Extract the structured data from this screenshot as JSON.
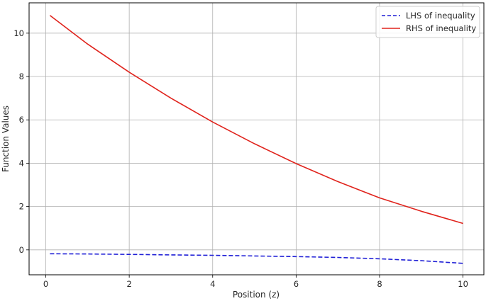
{
  "chart_data": {
    "type": "line",
    "title": "",
    "xlabel": "Position (z)",
    "ylabel": "Function Values",
    "xlim": [
      -0.4,
      10.5
    ],
    "ylim": [
      -1.15,
      11.4
    ],
    "xticks": [
      0,
      2,
      4,
      6,
      8,
      10
    ],
    "yticks": [
      0,
      2,
      4,
      6,
      8,
      10
    ],
    "grid": true,
    "legend_position": "top-right",
    "series": [
      {
        "name": "LHS of inequality",
        "color": "#1f1fd6",
        "style": "dashed",
        "x": [
          0.1,
          1,
          2,
          3,
          4,
          5,
          6,
          7,
          8,
          9,
          10
        ],
        "y": [
          -0.18,
          -0.19,
          -0.21,
          -0.23,
          -0.25,
          -0.28,
          -0.31,
          -0.35,
          -0.41,
          -0.5,
          -0.62
        ]
      },
      {
        "name": "RHS of inequality",
        "color": "#e0231c",
        "style": "solid",
        "x": [
          0.1,
          1,
          2,
          3,
          4,
          5,
          6,
          7,
          8,
          9,
          10
        ],
        "y": [
          10.82,
          9.5,
          8.2,
          7.0,
          5.9,
          4.9,
          3.98,
          3.15,
          2.4,
          1.78,
          1.22
        ]
      }
    ]
  }
}
